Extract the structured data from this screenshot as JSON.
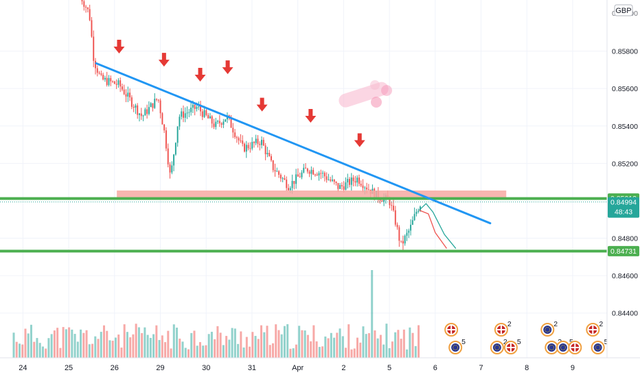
{
  "currency": "GBP",
  "chart_data": {
    "type": "candlestick",
    "y_axis": {
      "range": [
        0.843,
        0.86
      ],
      "ticks": [
        "0.85800",
        "0.85600",
        "0.85400",
        "0.85200",
        "0.84800",
        "0.84600",
        "0.84400"
      ],
      "tick_values": [
        0.858,
        0.856,
        0.854,
        0.852,
        0.848,
        0.846,
        0.844
      ],
      "top_partial": "0.86000"
    },
    "x_axis": {
      "labels": [
        "24",
        "25",
        "26",
        "29",
        "30",
        "31",
        "Apr",
        "2",
        "5",
        "6",
        "7",
        "8",
        "9"
      ],
      "positions": [
        0.5,
        1.5,
        2.5,
        3.5,
        4.5,
        5.5,
        6.5,
        7.5,
        8.5,
        9.5,
        10.5,
        11.5,
        12.5
      ],
      "range": [
        0,
        13.25
      ]
    },
    "price_labels": [
      {
        "id": "resistance",
        "text": "0.85012",
        "value": 0.85012,
        "color": "#4caf50"
      },
      {
        "id": "last",
        "text": "0.84994",
        "value": 0.84994,
        "color": "#26a69a",
        "countdown": "48:43"
      },
      {
        "id": "support",
        "text": "0.84731",
        "value": 0.84731,
        "color": "#4caf50"
      }
    ],
    "levels": {
      "resistance": 0.85012,
      "support": 0.84731,
      "last": 0.84994
    },
    "zone": {
      "x0": 2.55,
      "x1": 11.05,
      "y0": 0.85008,
      "y1": 0.85055,
      "color": "#f7a9a2"
    },
    "trendline": {
      "from": [
        2.1,
        0.85735
      ],
      "to": [
        10.7,
        0.8488
      ],
      "color": "#2196f3"
    },
    "arrows": [
      {
        "x": 2.6,
        "y": 0.8578
      },
      {
        "x": 3.58,
        "y": 0.8571
      },
      {
        "x": 4.37,
        "y": 0.8563
      },
      {
        "x": 4.97,
        "y": 0.8567
      },
      {
        "x": 5.72,
        "y": 0.8547
      },
      {
        "x": 6.78,
        "y": 0.8541
      },
      {
        "x": 7.85,
        "y": 0.8528
      }
    ],
    "projection": [
      {
        "points": [
          [
            9.15,
            0.8495
          ],
          [
            9.35,
            0.8493
          ],
          [
            9.5,
            0.8483
          ],
          [
            9.75,
            0.84745
          ]
        ],
        "color": "#ef5350"
      },
      {
        "points": [
          [
            9.15,
            0.8495
          ],
          [
            9.3,
            0.84985
          ],
          [
            9.45,
            0.8494
          ],
          [
            9.7,
            0.8482
          ],
          [
            9.95,
            0.84745
          ]
        ],
        "color": "#26a69a"
      }
    ],
    "candles": {
      "first_x": 1.75,
      "step": 0.0417,
      "count": 170,
      "colors": {
        "up": "#26a69a",
        "down": "#ef5350"
      }
    },
    "volume": {
      "max_value": "spike",
      "bar_count": 140
    },
    "events": [
      {
        "x": 9.85,
        "count": "",
        "flag": "uk"
      },
      {
        "x": 9.85,
        "count": "5",
        "flag": "eu"
      },
      {
        "x": 10.85,
        "count": "2",
        "flag": "eu"
      },
      {
        "x": 10.85,
        "count": "2",
        "flag": "uk"
      },
      {
        "x": 11.15,
        "count": "5",
        "flag": "uk"
      },
      {
        "x": 11.95,
        "count": "2",
        "flag": "eu"
      },
      {
        "x": 11.95,
        "count": "2",
        "flag": "eu"
      },
      {
        "x": 12.2,
        "count": "5",
        "flag": "eu"
      },
      {
        "x": 12.55,
        "count": "",
        "flag": "uk"
      },
      {
        "x": 12.85,
        "count": "2",
        "flag": "uk"
      },
      {
        "x": 13.05,
        "count": "5",
        "flag": "eu"
      }
    ]
  }
}
